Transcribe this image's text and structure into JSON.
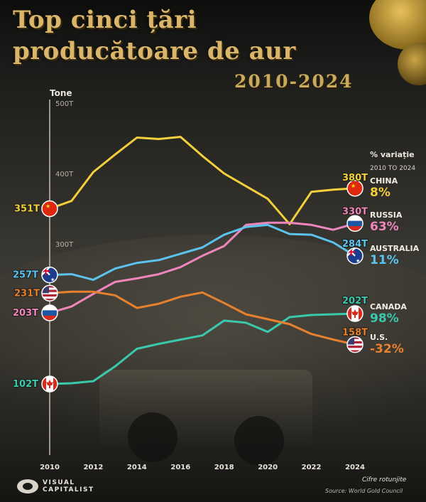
{
  "chart_data": {
    "type": "line",
    "title": "Top cinci țări producătoare de aur",
    "title_line1": "Top cinci țări",
    "title_line2": "producătoare de aur",
    "subtitle": "2010-2024",
    "ylabel": "Tone",
    "x": [
      2010,
      2011,
      2012,
      2013,
      2014,
      2015,
      2016,
      2017,
      2018,
      2019,
      2020,
      2021,
      2022,
      2023,
      2024
    ],
    "x_ticks": [
      2010,
      2012,
      2014,
      2016,
      2018,
      2020,
      2022,
      2024
    ],
    "x_tick_labels": [
      "2010",
      "2012",
      "2014",
      "2016",
      "2018",
      "2020",
      "2022",
      "2024"
    ],
    "ylim": [
      0,
      500
    ],
    "y_ticks": [
      300,
      400,
      500
    ],
    "y_tick_labels": [
      "300T",
      "400T",
      "500T"
    ],
    "grid": false,
    "legend_placement": "right",
    "change_header": "% variație",
    "change_period": "2010 TO 2024",
    "series": [
      {
        "name": "CHINA",
        "color": "#f2cf3b",
        "flag": "china-flag-icon",
        "start_label": "351T",
        "end_label": "380T",
        "change": "8%",
        "values": [
          351,
          362,
          403,
          428,
          452,
          450,
          453,
          426,
          401,
          383,
          365,
          329,
          375,
          378,
          380
        ]
      },
      {
        "name": "RUSSIA",
        "color": "#ee86bb",
        "flag": "russia-flag-icon",
        "start_label": "203T",
        "end_label": "330T",
        "change": "63%",
        "values": [
          203,
          212,
          230,
          247,
          252,
          258,
          268,
          284,
          298,
          328,
          331,
          331,
          328,
          321,
          330
        ]
      },
      {
        "name": "AUSTRALIA",
        "color": "#5bc3ee",
        "flag": "australia-flag-icon",
        "start_label": "257T",
        "end_label": "284T",
        "change": "11%",
        "values": [
          257,
          258,
          250,
          266,
          274,
          278,
          287,
          296,
          314,
          325,
          328,
          315,
          314,
          303,
          284
        ]
      },
      {
        "name": "CANADA",
        "color": "#3ac9ad",
        "flag": "canada-flag-icon",
        "start_label": "102T",
        "end_label": "202T",
        "change": "98%",
        "values": [
          102,
          103,
          106,
          127,
          152,
          159,
          165,
          171,
          192,
          189,
          176,
          197,
          200,
          201,
          202
        ]
      },
      {
        "name": "U.S.",
        "color": "#e8812e",
        "flag": "us-flag-icon",
        "start_label": "231T",
        "end_label": "158T",
        "change": "-32%",
        "values": [
          231,
          233,
          233,
          228,
          210,
          216,
          226,
          232,
          217,
          201,
          194,
          187,
          173,
          165,
          158
        ]
      }
    ]
  },
  "footnote": "Cifre rotunjite",
  "source": "Source: World Gold Council",
  "brand": {
    "line1": "VISUAL",
    "line2": "CAPITALIST",
    "icon": "visual-capitalist-logo-icon"
  }
}
